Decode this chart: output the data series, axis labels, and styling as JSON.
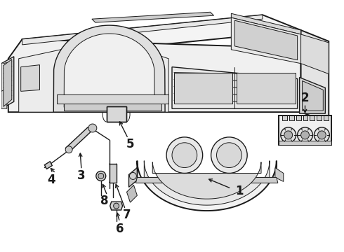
{
  "background_color": "#ffffff",
  "line_color": "#1a1a1a",
  "figsize": [
    4.9,
    3.6
  ],
  "dpi": 100,
  "label_fontsize": 12
}
